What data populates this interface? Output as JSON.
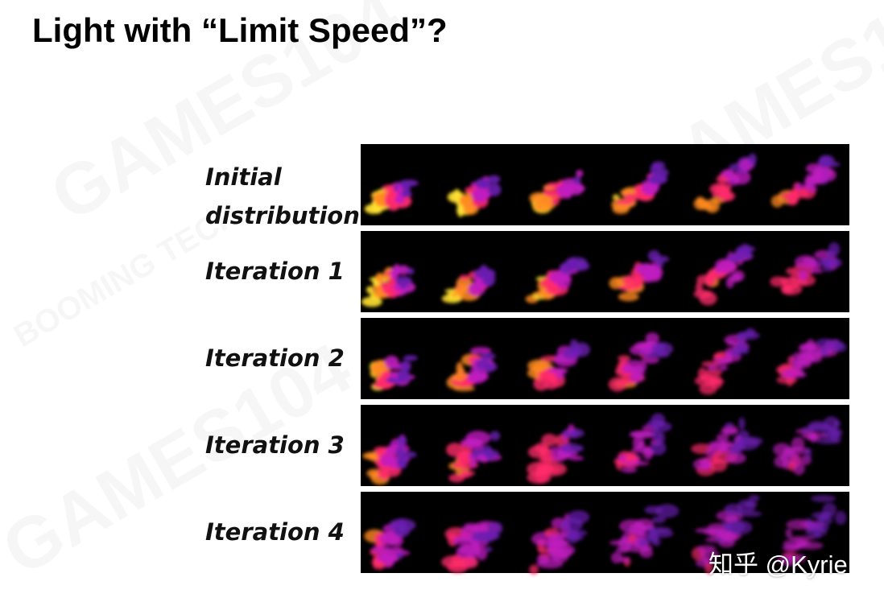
{
  "header": {
    "title": "Light with “Limit Speed”?"
  },
  "rows": [
    {
      "label": "Initial distribution"
    },
    {
      "label": "Iteration 1"
    },
    {
      "label": "Iteration 2"
    },
    {
      "label": "Iteration 3"
    },
    {
      "label": "Iteration 4"
    }
  ],
  "watermarks": [
    "GAMES104",
    "BOOMING TECH"
  ],
  "credit": "知乎 @Kyrie"
}
